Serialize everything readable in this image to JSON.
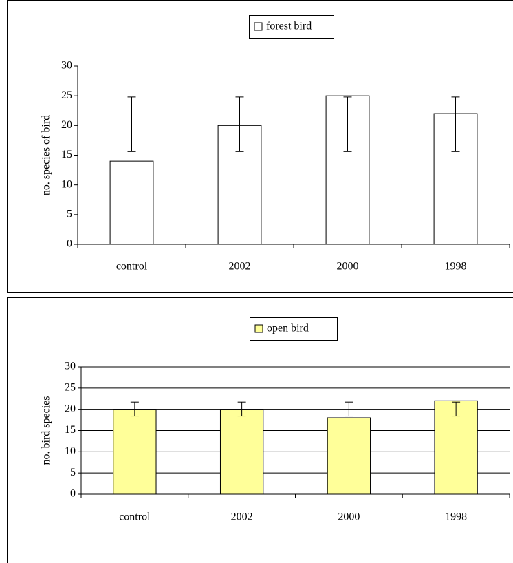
{
  "chart_data": [
    {
      "type": "bar",
      "ylabel": "no. species of bird",
      "categories": [
        "control",
        "2002",
        "2000",
        "1998"
      ],
      "series": [
        {
          "name": "forest bird",
          "color": "#ffffff",
          "values": [
            14,
            20,
            25,
            22
          ],
          "error_low": [
            15.6,
            15.6,
            15.6,
            15.6
          ],
          "error_high": [
            24.8,
            24.8,
            24.8,
            24.8
          ]
        }
      ],
      "ylim": [
        0,
        30
      ],
      "yticks": [
        0,
        5,
        10,
        15,
        20,
        25,
        30
      ],
      "grid": false,
      "legend": "top"
    },
    {
      "type": "bar",
      "ylabel": "no. bird species",
      "categories": [
        "control",
        "2002",
        "2000",
        "1998"
      ],
      "series": [
        {
          "name": "open bird",
          "color": "#ffff99",
          "values": [
            20,
            20,
            18,
            22
          ],
          "error_low": [
            18.4,
            18.4,
            18.4,
            18.4
          ],
          "error_high": [
            21.7,
            21.7,
            21.7,
            21.7
          ]
        }
      ],
      "ylim": [
        0,
        30
      ],
      "yticks": [
        0,
        5,
        10,
        15,
        20,
        25,
        30
      ],
      "grid": true,
      "legend": "top"
    }
  ]
}
